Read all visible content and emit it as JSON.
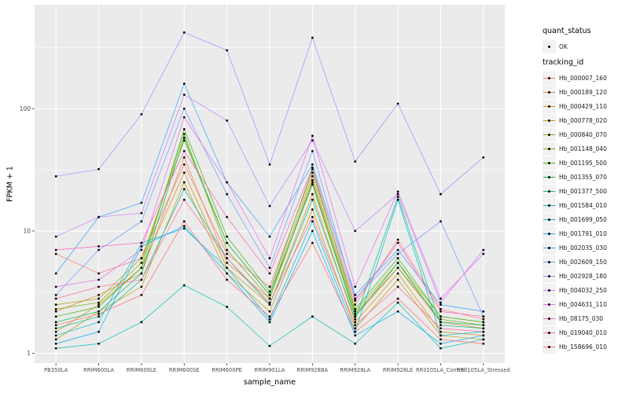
{
  "figure": {
    "panel_bg": "#EBEBEB",
    "grid_color": "#FFFFFF",
    "tick_label_color": "#4D4D4D",
    "point_color": "#000000"
  },
  "legend": {
    "quant_status_title": "quant_status",
    "quant_status_items": [
      {
        "label": "OK"
      }
    ],
    "tracking_id_title": "tracking_id"
  },
  "chart_data": {
    "type": "line",
    "title": "",
    "xlabel": "sample_name",
    "ylabel": "FPKM + 1",
    "y_scale": "log10",
    "ylim": [
      1,
      450
    ],
    "y_ticks": [
      1,
      10,
      100
    ],
    "grid": true,
    "legend_position": "right",
    "categories": [
      "PB350LA",
      "RRIM600LA",
      "RRIM600LE",
      "RRIM600SE",
      "RRIM600PE",
      "RRIM901LA",
      "RRIM928BA",
      "RRIM928LA",
      "RRIM928LE",
      "RRII105LA_Control",
      "RRII105LA_Stressed"
    ],
    "series": [
      {
        "name": "Hb_000007_160",
        "color": "#F8766D",
        "values": [
          6.5,
          4.5,
          6,
          35,
          6.5,
          3.5,
          30,
          2.5,
          8.5,
          2.3,
          1.9
        ]
      },
      {
        "name": "Hb_000189_120",
        "color": "#EA8331",
        "values": [
          2.2,
          3,
          4.5,
          40,
          5.5,
          2.8,
          25,
          2,
          5,
          1.8,
          1.6
        ]
      },
      {
        "name": "Hb_000429_110",
        "color": "#D89000",
        "values": [
          1.5,
          2.5,
          5,
          30,
          5,
          2.5,
          20,
          1.8,
          4.5,
          1.5,
          1.4
        ]
      },
      {
        "name": "Hb_000778_020",
        "color": "#C09B00",
        "values": [
          1.3,
          2.2,
          3.5,
          25,
          4.5,
          2.2,
          15,
          1.6,
          4,
          1.4,
          1.3
        ]
      },
      {
        "name": "Hb_000840_070",
        "color": "#A3A500",
        "values": [
          2.5,
          2.8,
          6,
          55,
          8,
          3,
          28,
          2.2,
          5.5,
          2,
          1.8
        ]
      },
      {
        "name": "Hb_001148_040",
        "color": "#7CAE00",
        "values": [
          2.3,
          2.6,
          5.5,
          62,
          7,
          2.8,
          26,
          2.1,
          5,
          1.9,
          1.7
        ]
      },
      {
        "name": "Hb_001195_500",
        "color": "#39B600",
        "values": [
          2,
          2.4,
          5,
          68,
          9,
          3.2,
          32,
          2.3,
          6,
          2,
          1.8
        ]
      },
      {
        "name": "Hb_001355_070",
        "color": "#00BB4E",
        "values": [
          1.8,
          2.2,
          4.5,
          58,
          8,
          3,
          24,
          2,
          5.5,
          1.8,
          1.7
        ]
      },
      {
        "name": "Hb_001377_500",
        "color": "#00C087",
        "values": [
          1.6,
          2,
          4,
          22,
          6,
          2.5,
          18,
          1.9,
          19,
          1.7,
          1.6
        ]
      },
      {
        "name": "Hb_001584_010",
        "color": "#00C0B8",
        "values": [
          1.1,
          1.2,
          1.8,
          3.6,
          2.4,
          1.15,
          2,
          1.2,
          2.6,
          1.1,
          1.3
        ]
      },
      {
        "name": "Hb_001699_050",
        "color": "#00BCD8",
        "values": [
          1.4,
          1.8,
          8,
          10.5,
          5,
          1.9,
          12,
          1.5,
          18,
          1.4,
          1.5
        ]
      },
      {
        "name": "Hb_001791_010",
        "color": "#00B0F6",
        "values": [
          1.2,
          1.5,
          7.5,
          11,
          4.5,
          1.8,
          10,
          1.4,
          2.2,
          1.2,
          1.4
        ]
      },
      {
        "name": "Hb_002035_030",
        "color": "#35A2FF",
        "values": [
          4.5,
          13,
          17,
          160,
          25,
          9,
          35,
          3,
          7,
          2.5,
          2.2
        ]
      },
      {
        "name": "Hb_002609_150",
        "color": "#6E9BFF",
        "values": [
          3,
          7,
          12,
          100,
          20,
          5,
          45,
          2.8,
          6.5,
          12,
          2
        ]
      },
      {
        "name": "Hb_002928_180",
        "color": "#9590FF",
        "values": [
          28,
          32,
          90,
          420,
          300,
          35,
          380,
          37,
          110,
          20,
          40
        ]
      },
      {
        "name": "Hb_004032_250",
        "color": "#C77CFF",
        "values": [
          9,
          13,
          14,
          130,
          80,
          16,
          55,
          10,
          20,
          2.6,
          7
        ]
      },
      {
        "name": "Hb_004631_110",
        "color": "#E76BF3",
        "values": [
          3.5,
          4,
          7,
          85,
          25,
          6,
          60,
          3.5,
          21,
          2.8,
          6.5
        ]
      },
      {
        "name": "Hb_08175_030",
        "color": "#FF62BC",
        "values": [
          7,
          7.5,
          8,
          45,
          13,
          4.5,
          33,
          2.7,
          8,
          2.2,
          2
        ]
      },
      {
        "name": "Hb_019040_010",
        "color": "#FF6A98",
        "values": [
          2.8,
          3.5,
          4,
          18,
          6,
          2.6,
          13,
          1.7,
          3.5,
          1.6,
          1.5
        ]
      },
      {
        "name": "Hb_158696_010",
        "color": "#FF6C67",
        "values": [
          1.7,
          2.1,
          3,
          12,
          4,
          2,
          8,
          1.5,
          2.8,
          1.3,
          1.2
        ]
      }
    ]
  }
}
